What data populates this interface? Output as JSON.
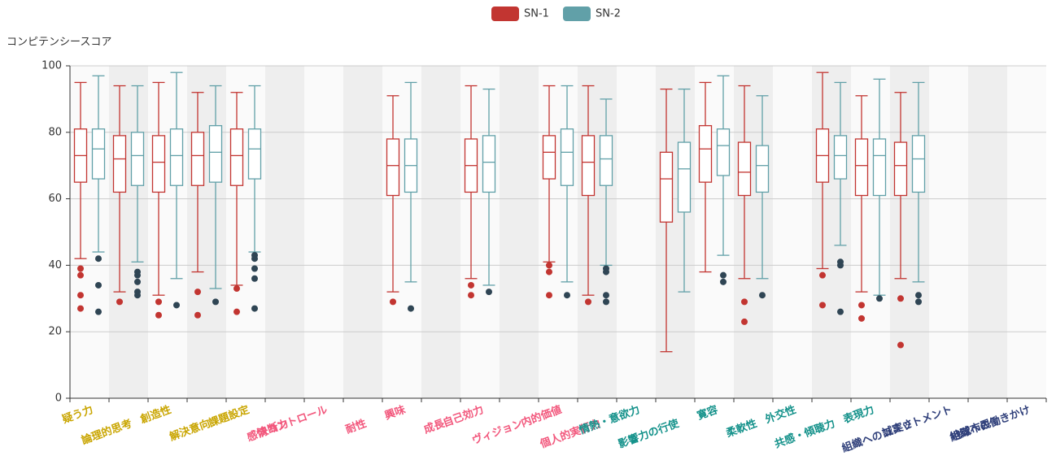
{
  "chart_data": {
    "type": "boxplot",
    "y_axis_label": "コンピテンシースコア",
    "ylim": [
      0,
      100
    ],
    "yticks": [
      0,
      20,
      40,
      60,
      80,
      100
    ],
    "grid": true,
    "categories": [
      "疑う力",
      "論理的思考",
      "創造性",
      "解決意向",
      "課題設定",
      "決断力",
      "感情コントロール",
      "耐性",
      "興味",
      "成長",
      "自己効力",
      "ヴィジョン",
      "内的価値",
      "個人的実行力",
      "情熱・意欲力",
      "影響力の行使",
      "寛容",
      "柔軟性",
      "外交性",
      "共感・傾聴力",
      "表現力",
      "誠実さ",
      "組織へのコミットメント",
      "地球市民",
      "組織への働きかけ"
    ],
    "label_colors": [
      "#c9a500",
      "#c9a500",
      "#c9a500",
      "#c9a500",
      "#c9a500",
      "#f2577c",
      "#f2577c",
      "#f2577c",
      "#f2577c",
      "#f2577c",
      "#f2577c",
      "#f2577c",
      "#f2577c",
      "#f2577c",
      "#13918a",
      "#13918a",
      "#13918a",
      "#13918a",
      "#13918a",
      "#13918a",
      "#13918a",
      "#2f3f7a",
      "#2f3f7a",
      "#2f3f7a",
      "#2f3f7a"
    ],
    "series": [
      {
        "name": "SN-1",
        "color": "#c23531",
        "outlier_color": "#c23531",
        "values": [
          [
            42,
            65,
            73,
            81,
            95
          ],
          [
            32,
            62,
            72,
            79,
            94
          ],
          [
            31,
            62,
            71,
            79,
            95
          ],
          [
            38,
            64,
            73,
            80,
            92
          ],
          [
            34,
            64,
            73,
            81,
            92
          ],
          null,
          null,
          null,
          [
            32,
            61,
            70,
            78,
            91
          ],
          null,
          [
            36,
            62,
            70,
            78,
            94
          ],
          null,
          [
            41,
            66,
            74,
            79,
            94
          ],
          [
            31,
            61,
            71,
            79,
            94
          ],
          null,
          [
            14,
            53,
            66,
            74,
            93
          ],
          [
            38,
            65,
            75,
            82,
            95
          ],
          [
            36,
            61,
            68,
            77,
            94
          ],
          null,
          [
            39,
            65,
            73,
            81,
            98
          ],
          [
            32,
            61,
            70,
            78,
            91
          ],
          [
            36,
            61,
            70,
            77,
            92
          ],
          null,
          null,
          null
        ],
        "outliers": [
          [
            39,
            37,
            31,
            27
          ],
          [
            29
          ],
          [
            29,
            25
          ],
          [
            32,
            25
          ],
          [
            33,
            26
          ],
          [],
          [],
          [],
          [
            29
          ],
          [],
          [
            34,
            31
          ],
          [],
          [
            40,
            38,
            31
          ],
          [
            29
          ],
          [],
          [],
          [],
          [
            29,
            23
          ],
          [],
          [
            37,
            28
          ],
          [
            28,
            24
          ],
          [
            30,
            16
          ],
          [],
          [],
          []
        ]
      },
      {
        "name": "SN-2",
        "color": "#61a0a8",
        "outlier_color": "#2f4554",
        "values": [
          [
            44,
            66,
            75,
            81,
            97
          ],
          [
            41,
            64,
            73,
            80,
            94
          ],
          [
            36,
            64,
            73,
            81,
            98
          ],
          [
            33,
            65,
            74,
            82,
            94
          ],
          [
            44,
            66,
            75,
            81,
            94
          ],
          null,
          null,
          null,
          [
            35,
            62,
            70,
            78,
            95
          ],
          null,
          [
            34,
            62,
            71,
            79,
            93
          ],
          null,
          [
            35,
            64,
            74,
            81,
            94
          ],
          [
            40,
            64,
            72,
            79,
            90
          ],
          null,
          [
            32,
            56,
            69,
            77,
            93
          ],
          [
            43,
            67,
            76,
            81,
            97
          ],
          [
            36,
            62,
            70,
            76,
            91
          ],
          null,
          [
            46,
            66,
            73,
            79,
            95
          ],
          [
            31,
            61,
            73,
            78,
            96
          ],
          [
            35,
            62,
            72,
            79,
            95
          ],
          null,
          null,
          null
        ],
        "outliers": [
          [
            42,
            34,
            26
          ],
          [
            38,
            37,
            35,
            32,
            31
          ],
          [
            28
          ],
          [
            29
          ],
          [
            43,
            42,
            39,
            36,
            27
          ],
          [],
          [],
          [],
          [
            27
          ],
          [],
          [
            32
          ],
          [],
          [
            31
          ],
          [
            39,
            38,
            31,
            29
          ],
          [],
          [],
          [
            37,
            35
          ],
          [
            31
          ],
          [],
          [
            41,
            40,
            26
          ],
          [
            30
          ],
          [
            31,
            29
          ],
          [],
          [],
          []
        ]
      }
    ]
  }
}
